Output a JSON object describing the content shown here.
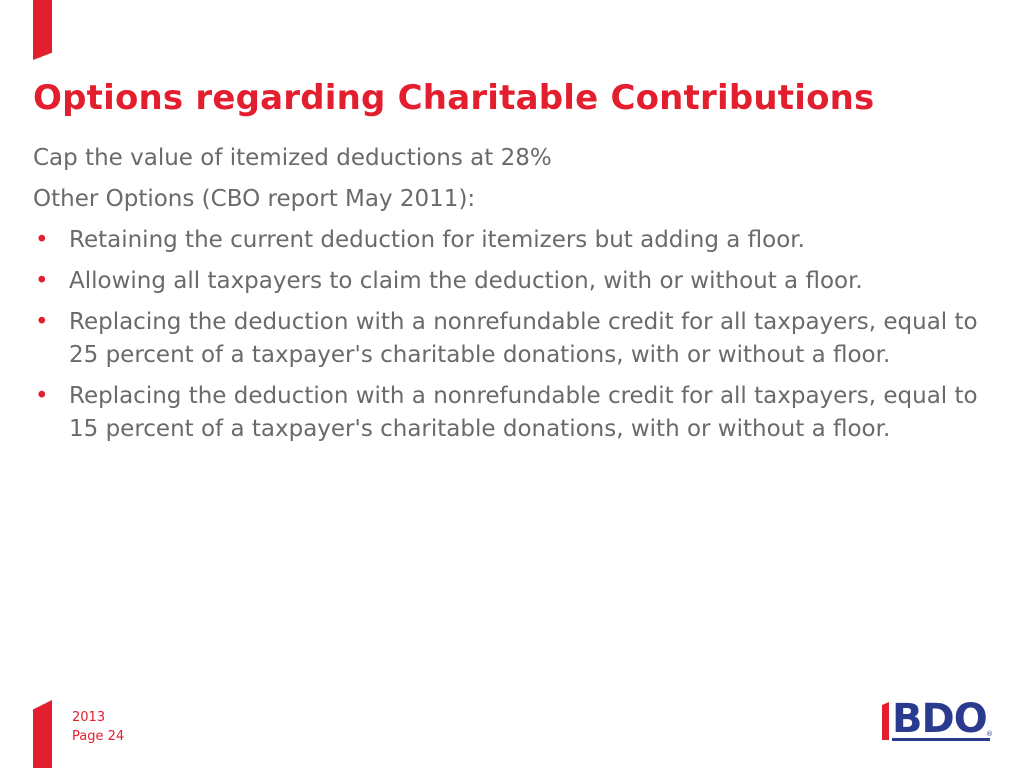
{
  "slide": {
    "title": "Options regarding Charitable Contributions",
    "paragraphs": [
      "Cap the value of itemized deductions at 28%",
      "Other Options (CBO report May 2011):"
    ],
    "bullet_glyph": "•",
    "bullets": [
      "Retaining the current deduction for itemizers but adding a floor.",
      "Allowing all taxpayers to claim the deduction, with or without a floor.",
      "Replacing the deduction with a nonrefundable credit for all taxpayers, equal to 25 percent of a taxpayer's charitable donations, with or without a floor.",
      "Replacing the deduction with a nonrefundable credit for all taxpayers, equal to 15 percent of a taxpayer's charitable donations, with or without a floor."
    ]
  },
  "footer": {
    "year": "2013",
    "page": "Page 24"
  },
  "logo": {
    "text": "BDO",
    "reg_mark": "®"
  },
  "colors": {
    "accent": "#e31e2e",
    "body_text": "#6a6a6a",
    "logo_blue": "#2a3b8f"
  }
}
